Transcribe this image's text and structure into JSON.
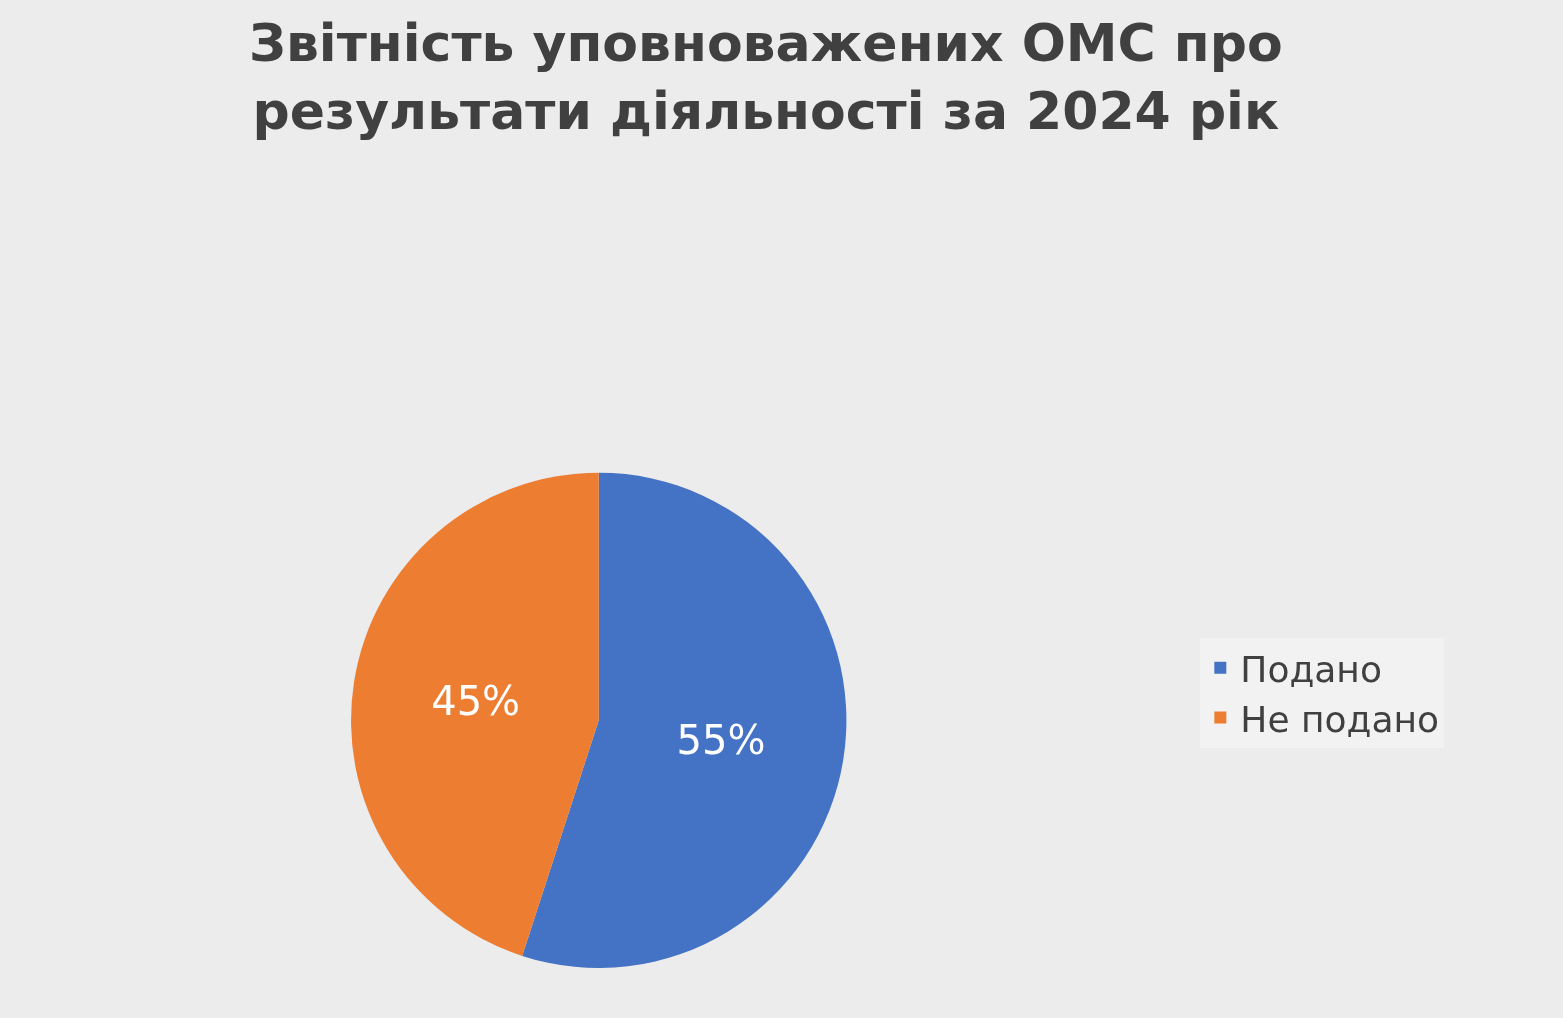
{
  "chart_data": {
    "type": "pie",
    "title": "Звітність уповноважених ОМС про результати діяльності за 2024 рік",
    "categories": [
      "Подано",
      "Не подано"
    ],
    "values": [
      55,
      45
    ],
    "colors": [
      "#4472c4",
      "#ed7d31"
    ],
    "value_labels": [
      "55%",
      "45%"
    ],
    "legend": "right"
  }
}
